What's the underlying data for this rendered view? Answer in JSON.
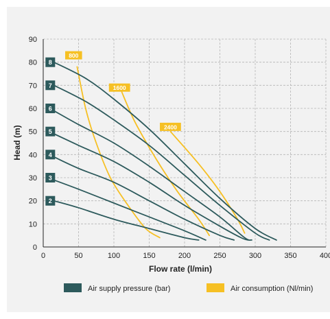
{
  "chart_data": {
    "type": "line",
    "title": "",
    "xlabel": "Flow rate (l/min)",
    "ylabel": "Head (m)",
    "xlim": [
      0,
      400
    ],
    "ylim": [
      0,
      90
    ],
    "x_ticks": [
      0,
      50,
      100,
      150,
      200,
      250,
      300,
      350,
      400
    ],
    "y_ticks": [
      0,
      10,
      20,
      30,
      40,
      50,
      60,
      70,
      80,
      90
    ],
    "x_tick_labels": [
      "0",
      "50",
      "100",
      "150",
      "200",
      "250",
      "300",
      "350",
      "400"
    ],
    "y_tick_labels": [
      "0",
      "10",
      "20",
      "30",
      "40",
      "50",
      "60",
      "70",
      "80",
      "90"
    ],
    "grid": "dashed",
    "legend_position": "bottom",
    "legend": [
      {
        "label": "Air supply pressure (bar)",
        "color": "#2d5a5c"
      },
      {
        "label": "Air consumption (Nl/min)",
        "color": "#f6c024"
      }
    ],
    "series": [
      {
        "name": "8",
        "group": "pressure",
        "color": "#2d5a5c",
        "points": [
          [
            15,
            80
          ],
          [
            60,
            73
          ],
          [
            100,
            64
          ],
          [
            150,
            51
          ],
          [
            200,
            36
          ],
          [
            250,
            21
          ],
          [
            300,
            8
          ],
          [
            330,
            3
          ]
        ]
      },
      {
        "name": "7",
        "group": "pressure",
        "color": "#2d5a5c",
        "points": [
          [
            15,
            70
          ],
          [
            60,
            63
          ],
          [
            100,
            55
          ],
          [
            150,
            44
          ],
          [
            200,
            31
          ],
          [
            250,
            18
          ],
          [
            300,
            6
          ],
          [
            320,
            3
          ]
        ]
      },
      {
        "name": "6",
        "group": "pressure",
        "color": "#2d5a5c",
        "points": [
          [
            15,
            59
          ],
          [
            50,
            53
          ],
          [
            100,
            45
          ],
          [
            150,
            35
          ],
          [
            200,
            24
          ],
          [
            250,
            13
          ],
          [
            285,
            4
          ],
          [
            295,
            3
          ]
        ]
      },
      {
        "name": "5",
        "group": "pressure",
        "color": "#2d5a5c",
        "points": [
          [
            15,
            49
          ],
          [
            50,
            44
          ],
          [
            100,
            37
          ],
          [
            150,
            28
          ],
          [
            200,
            18
          ],
          [
            250,
            9
          ],
          [
            280,
            4
          ],
          [
            290,
            3
          ]
        ]
      },
      {
        "name": "4",
        "group": "pressure",
        "color": "#2d5a5c",
        "points": [
          [
            15,
            39
          ],
          [
            50,
            34
          ],
          [
            100,
            28
          ],
          [
            150,
            20
          ],
          [
            200,
            12
          ],
          [
            250,
            5
          ],
          [
            270,
            3
          ]
        ]
      },
      {
        "name": "3",
        "group": "pressure",
        "color": "#2d5a5c",
        "points": [
          [
            15,
            29
          ],
          [
            50,
            25
          ],
          [
            100,
            19
          ],
          [
            150,
            13
          ],
          [
            200,
            7
          ],
          [
            230,
            3
          ]
        ]
      },
      {
        "name": "2",
        "group": "pressure",
        "color": "#2d5a5c",
        "points": [
          [
            15,
            20
          ],
          [
            50,
            17
          ],
          [
            100,
            12
          ],
          [
            150,
            8
          ],
          [
            200,
            4
          ],
          [
            220,
            3
          ]
        ]
      },
      {
        "name": "800",
        "group": "consumption",
        "color": "#f6c024",
        "points": [
          [
            48,
            78
          ],
          [
            60,
            60
          ],
          [
            75,
            45
          ],
          [
            95,
            30
          ],
          [
            120,
            18
          ],
          [
            145,
            8
          ],
          [
            165,
            4
          ]
        ]
      },
      {
        "name": "1600",
        "group": "consumption",
        "color": "#f6c024",
        "points": [
          [
            110,
            68
          ],
          [
            130,
            54
          ],
          [
            160,
            38
          ],
          [
            190,
            24
          ],
          [
            220,
            12
          ],
          [
            235,
            5
          ]
        ]
      },
      {
        "name": "2400",
        "group": "consumption",
        "color": "#f6c024",
        "points": [
          [
            180,
            50
          ],
          [
            220,
            36
          ],
          [
            250,
            24
          ],
          [
            275,
            12
          ],
          [
            285,
            6
          ]
        ]
      }
    ],
    "series_labels": [
      {
        "text": "8",
        "series": "8",
        "x": 10,
        "y": 80
      },
      {
        "text": "7",
        "series": "7",
        "x": 10,
        "y": 70
      },
      {
        "text": "6",
        "series": "6",
        "x": 10,
        "y": 60
      },
      {
        "text": "5",
        "series": "5",
        "x": 10,
        "y": 50
      },
      {
        "text": "4",
        "series": "4",
        "x": 10,
        "y": 40
      },
      {
        "text": "3",
        "series": "3",
        "x": 10,
        "y": 30
      },
      {
        "text": "2",
        "series": "2",
        "x": 10,
        "y": 20
      },
      {
        "text": "800",
        "series": "800",
        "x": 43,
        "y": 83
      },
      {
        "text": "1600",
        "series": "1600",
        "x": 108,
        "y": 69
      },
      {
        "text": "2400",
        "series": "2400",
        "x": 180,
        "y": 52
      }
    ]
  }
}
